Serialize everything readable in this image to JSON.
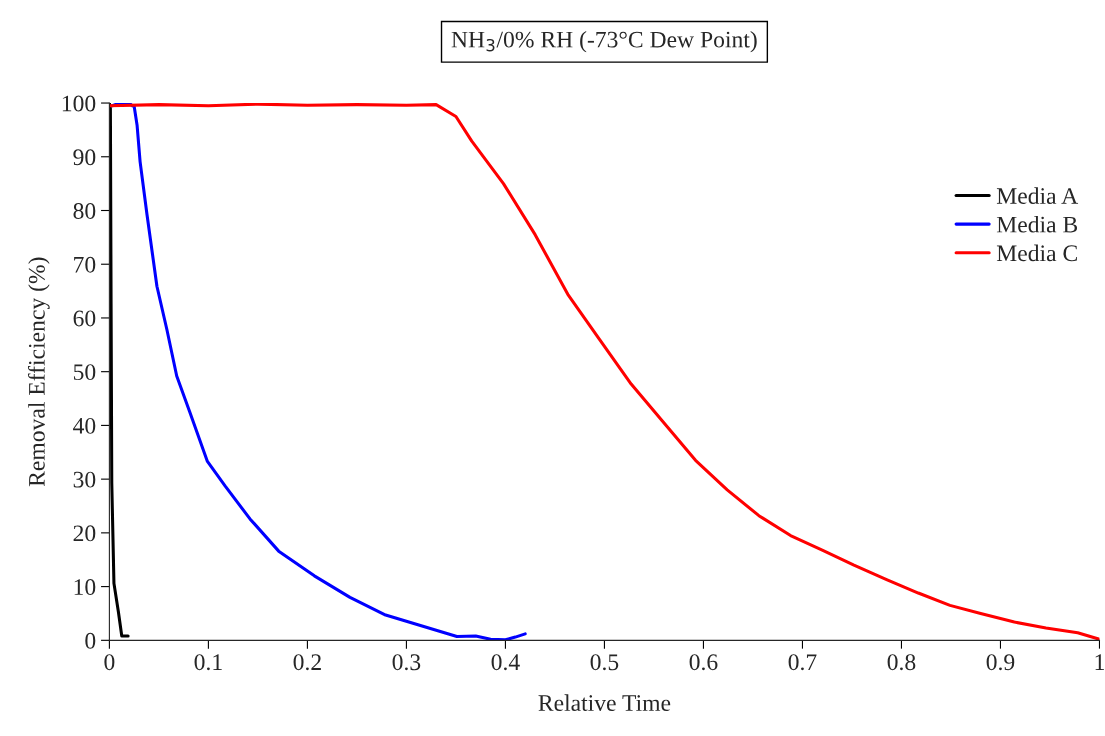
{
  "chart_data": {
    "type": "line",
    "title": "NH$_{3}$/0% RH (-73°C Dew Point)",
    "xlabel": "Relative Time",
    "ylabel": "Removal Efficiency (%)",
    "xlim": [
      0,
      1
    ],
    "ylim": [
      0,
      100
    ],
    "xticks": [
      0,
      0.1,
      0.2,
      0.3,
      0.4,
      0.5,
      0.6,
      0.7,
      0.8,
      0.9,
      1
    ],
    "yticks": [
      0,
      10,
      20,
      30,
      40,
      50,
      60,
      70,
      80,
      90,
      100
    ],
    "grid": false,
    "legend": "right",
    "marker": "none",
    "line_style": "solid",
    "series": [
      {
        "name": "Media A",
        "color": "#000000",
        "x": [
          0,
          0.001,
          0.0017,
          0.0024,
          0.0046,
          0.009,
          0.0125,
          0.0189
        ],
        "values": [
          100,
          99,
          62.6,
          29.3,
          10.6,
          5.4,
          0.8,
          0.8
        ]
      },
      {
        "name": "Media B",
        "color": "#0000ff",
        "x": [
          0.003,
          0.01,
          0.02,
          0.023,
          0.025,
          0.028,
          0.031,
          0.038,
          0.048,
          0.058,
          0.068,
          0.081,
          0.099,
          0.117,
          0.142,
          0.171,
          0.207,
          0.243,
          0.279,
          0.315,
          0.351,
          0.37,
          0.385,
          0.4,
          0.41,
          0.42
        ],
        "values": [
          99.5,
          100,
          100,
          99.5,
          99.4,
          95.8,
          89.1,
          79.2,
          65.9,
          57.9,
          49.2,
          42.6,
          33.3,
          28.7,
          22.6,
          16.6,
          12.0,
          8.0,
          4.7,
          2.7,
          0.7,
          0.8,
          0.2,
          0.1,
          0.6,
          1.2
        ]
      },
      {
        "name": "Media C",
        "color": "#ff0000",
        "x": [
          0,
          0.05,
          0.1,
          0.15,
          0.2,
          0.25,
          0.3,
          0.33,
          0.35,
          0.366,
          0.398,
          0.43,
          0.463,
          0.495,
          0.527,
          0.56,
          0.592,
          0.624,
          0.656,
          0.688,
          0.72,
          0.752,
          0.785,
          0.817,
          0.849,
          0.88,
          0.914,
          0.946,
          0.978,
          1.0
        ],
        "values": [
          99.5,
          99.7,
          99.5,
          99.8,
          99.6,
          99.7,
          99.6,
          99.7,
          97.5,
          92.9,
          85.0,
          75.5,
          64.4,
          56.0,
          47.7,
          40.5,
          33.5,
          28.0,
          23.2,
          19.5,
          16.8,
          14.0,
          11.3,
          8.8,
          6.5,
          5.0,
          3.4,
          2.3,
          1.4,
          0.2
        ]
      }
    ]
  }
}
